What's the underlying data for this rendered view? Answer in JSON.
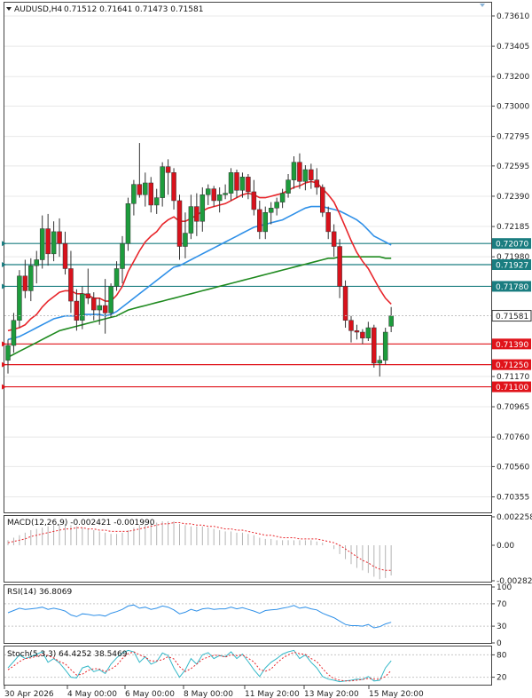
{
  "header": {
    "symbol": "AUDUSD,H4",
    "ohlc": "0.71512 0.71641 0.71473 0.71581"
  },
  "price_axis": [
    "0.73610",
    "0.73405",
    "0.73200",
    "0.73000",
    "0.72795",
    "0.72595",
    "0.72390",
    "0.72185",
    "0.71980",
    "0.71170",
    "0.70965",
    "0.70760",
    "0.70560",
    "0.70355"
  ],
  "level_tags": [
    {
      "value": "0.72070",
      "color": "#1a7d80"
    },
    {
      "value": "0.71927",
      "color": "#1a7d80"
    },
    {
      "value": "0.71780",
      "color": "#1a7d80"
    },
    {
      "value": "0.71390",
      "color": "#e0131a"
    },
    {
      "value": "0.71250",
      "color": "#e0131a"
    },
    {
      "value": "0.71100",
      "color": "#e0131a"
    }
  ],
  "current_price": "0.71581",
  "time_axis": [
    "30 Apr 2026",
    "4 May 00:00",
    "6 May 00:00",
    "8 May 00:00",
    "11 May 20:00",
    "13 May 20:00",
    "15 May 20:00"
  ],
  "indicators": {
    "macd": {
      "label": "MACD(12,26,9) -0.002421 -0.001990",
      "ticks": [
        "0.002258",
        "0.00",
        "-0.002823"
      ]
    },
    "rsi": {
      "label": "RSI(14) 36.8069",
      "ticks": [
        "100",
        "70",
        "30",
        "0"
      ]
    },
    "stoch": {
      "label": "Stoch(5,3,3) 64.4252 38.5469",
      "ticks": [
        "80",
        "20"
      ]
    }
  },
  "colors": {
    "bull": "#1d9c3c",
    "bear": "#d8121c",
    "ema_fast": "#e8262b",
    "ema_mid": "#2f90e8",
    "ema_slow": "#1f8a1f",
    "support_line": "#1a7d80",
    "resistance_line": "#e0131a"
  },
  "chart_data": {
    "type": "candlestick",
    "ylim": [
      0.7025,
      0.737
    ],
    "candles": [
      [
        0.7128,
        0.7142,
        0.7119,
        0.7138
      ],
      [
        0.7138,
        0.716,
        0.7133,
        0.7155
      ],
      [
        0.7155,
        0.7189,
        0.715,
        0.7185
      ],
      [
        0.7185,
        0.7196,
        0.717,
        0.7175
      ],
      [
        0.7175,
        0.7197,
        0.7168,
        0.7192
      ],
      [
        0.7192,
        0.7202,
        0.718,
        0.7196
      ],
      [
        0.7196,
        0.7226,
        0.719,
        0.7217
      ],
      [
        0.7217,
        0.7227,
        0.7192,
        0.72
      ],
      [
        0.72,
        0.7222,
        0.7195,
        0.7215
      ],
      [
        0.7215,
        0.7224,
        0.7198,
        0.7207
      ],
      [
        0.7207,
        0.7215,
        0.7186,
        0.719
      ],
      [
        0.719,
        0.7202,
        0.716,
        0.7168
      ],
      [
        0.7168,
        0.7176,
        0.7148,
        0.7155
      ],
      [
        0.7155,
        0.7178,
        0.7149,
        0.7173
      ],
      [
        0.7173,
        0.719,
        0.7166,
        0.717
      ],
      [
        0.717,
        0.7174,
        0.7155,
        0.7162
      ],
      [
        0.7162,
        0.717,
        0.7152,
        0.7165
      ],
      [
        0.7165,
        0.7183,
        0.7146,
        0.716
      ],
      [
        0.716,
        0.718,
        0.7157,
        0.7178
      ],
      [
        0.7178,
        0.7195,
        0.7175,
        0.719
      ],
      [
        0.719,
        0.7212,
        0.718,
        0.7207
      ],
      [
        0.7207,
        0.7238,
        0.7202,
        0.7234
      ],
      [
        0.7234,
        0.725,
        0.7226,
        0.7247
      ],
      [
        0.7247,
        0.7275,
        0.7238,
        0.724
      ],
      [
        0.724,
        0.7255,
        0.7232,
        0.7248
      ],
      [
        0.7248,
        0.7252,
        0.7228,
        0.7233
      ],
      [
        0.7233,
        0.7244,
        0.7227,
        0.7238
      ],
      [
        0.7238,
        0.7262,
        0.7232,
        0.7259
      ],
      [
        0.7259,
        0.7264,
        0.724,
        0.7255
      ],
      [
        0.7255,
        0.7258,
        0.723,
        0.7236
      ],
      [
        0.7236,
        0.724,
        0.7196,
        0.7205
      ],
      [
        0.7205,
        0.7228,
        0.7197,
        0.7214
      ],
      [
        0.7214,
        0.724,
        0.721,
        0.7232
      ],
      [
        0.7232,
        0.7241,
        0.7212,
        0.7222
      ],
      [
        0.7222,
        0.7245,
        0.7215,
        0.724
      ],
      [
        0.724,
        0.7247,
        0.7233,
        0.7244
      ],
      [
        0.7244,
        0.7246,
        0.7232,
        0.7236
      ],
      [
        0.7236,
        0.7245,
        0.7228,
        0.724
      ],
      [
        0.724,
        0.7247,
        0.7237,
        0.7241
      ],
      [
        0.7241,
        0.7258,
        0.7236,
        0.7255
      ],
      [
        0.7255,
        0.7257,
        0.7238,
        0.7243
      ],
      [
        0.7243,
        0.7255,
        0.7238,
        0.7252
      ],
      [
        0.7252,
        0.7254,
        0.7237,
        0.7242
      ],
      [
        0.7242,
        0.725,
        0.7226,
        0.723
      ],
      [
        0.723,
        0.7236,
        0.721,
        0.7215
      ],
      [
        0.7215,
        0.7232,
        0.721,
        0.7228
      ],
      [
        0.7228,
        0.7235,
        0.722,
        0.7231
      ],
      [
        0.7231,
        0.7238,
        0.7226,
        0.7235
      ],
      [
        0.7235,
        0.7244,
        0.7231,
        0.7241
      ],
      [
        0.7241,
        0.7254,
        0.7238,
        0.725
      ],
      [
        0.725,
        0.7266,
        0.7244,
        0.7262
      ],
      [
        0.7262,
        0.7268,
        0.7244,
        0.7249
      ],
      [
        0.7249,
        0.726,
        0.7243,
        0.7257
      ],
      [
        0.7257,
        0.7261,
        0.7244,
        0.725
      ],
      [
        0.725,
        0.7258,
        0.724,
        0.7245
      ],
      [
        0.7245,
        0.7247,
        0.7225,
        0.7228
      ],
      [
        0.7228,
        0.7232,
        0.721,
        0.7215
      ],
      [
        0.7215,
        0.722,
        0.7198,
        0.7205
      ],
      [
        0.7205,
        0.721,
        0.717,
        0.7178
      ],
      [
        0.7178,
        0.7182,
        0.715,
        0.7155
      ],
      [
        0.7155,
        0.7158,
        0.714,
        0.7148
      ],
      [
        0.7148,
        0.7152,
        0.7142,
        0.7147
      ],
      [
        0.7147,
        0.7149,
        0.7139,
        0.7143
      ],
      [
        0.7143,
        0.7154,
        0.7141,
        0.715
      ],
      [
        0.715,
        0.7152,
        0.7123,
        0.7126
      ],
      [
        0.7126,
        0.7131,
        0.7117,
        0.7128
      ],
      [
        0.7128,
        0.715,
        0.7125,
        0.7147
      ],
      [
        0.7151,
        0.7164,
        0.7147,
        0.7158
      ]
    ],
    "ema_fast": [
      0.7148,
      0.7149,
      0.715,
      0.7152,
      0.7156,
      0.7159,
      0.7164,
      0.7168,
      0.7171,
      0.7174,
      0.7175,
      0.7175,
      0.7173,
      0.7173,
      0.7172,
      0.717,
      0.717,
      0.7168,
      0.7168,
      0.7172,
      0.7178,
      0.7188,
      0.7195,
      0.7202,
      0.7208,
      0.7212,
      0.7215,
      0.722,
      0.7223,
      0.7225,
      0.7222,
      0.7222,
      0.7224,
      0.7226,
      0.7229,
      0.7231,
      0.7232,
      0.7233,
      0.7234,
      0.7236,
      0.7238,
      0.724,
      0.7241,
      0.724,
      0.7238,
      0.7238,
      0.7239,
      0.724,
      0.7241,
      0.7243,
      0.7245,
      0.7246,
      0.7248,
      0.7249,
      0.7248,
      0.7244,
      0.724,
      0.7235,
      0.7227,
      0.7218,
      0.7209,
      0.7201,
      0.7195,
      0.719,
      0.7183,
      0.7176,
      0.717,
      0.7166
    ],
    "ema_mid": [
      0.7142,
      0.7143,
      0.7144,
      0.7146,
      0.7148,
      0.715,
      0.7152,
      0.7154,
      0.7156,
      0.7157,
      0.7158,
      0.7158,
      0.7158,
      0.7159,
      0.7159,
      0.7159,
      0.7159,
      0.7158,
      0.7159,
      0.7161,
      0.7164,
      0.7167,
      0.717,
      0.7173,
      0.7176,
      0.7179,
      0.7182,
      0.7185,
      0.7188,
      0.7191,
      0.7192,
      0.7194,
      0.7196,
      0.7198,
      0.72,
      0.7202,
      0.7204,
      0.7206,
      0.7208,
      0.721,
      0.7212,
      0.7214,
      0.7216,
      0.7218,
      0.7219,
      0.722,
      0.7221,
      0.7222,
      0.7223,
      0.7225,
      0.7227,
      0.7229,
      0.7231,
      0.7232,
      0.7232,
      0.7232,
      0.7231,
      0.723,
      0.7229,
      0.7227,
      0.7225,
      0.7223,
      0.722,
      0.7216,
      0.7212,
      0.721,
      0.7208,
      0.7206
    ],
    "ema_slow": [
      0.713,
      0.7132,
      0.7134,
      0.7136,
      0.7138,
      0.714,
      0.7142,
      0.7144,
      0.7146,
      0.7148,
      0.7149,
      0.715,
      0.7151,
      0.7152,
      0.7153,
      0.7154,
      0.7155,
      0.7156,
      0.7157,
      0.7158,
      0.716,
      0.7162,
      0.7163,
      0.7164,
      0.7165,
      0.7166,
      0.7167,
      0.7168,
      0.7169,
      0.717,
      0.7171,
      0.7172,
      0.7173,
      0.7174,
      0.7175,
      0.7176,
      0.7177,
      0.7178,
      0.7179,
      0.718,
      0.7181,
      0.7182,
      0.7183,
      0.7184,
      0.7185,
      0.7186,
      0.7187,
      0.7188,
      0.7189,
      0.719,
      0.7191,
      0.7192,
      0.7193,
      0.7194,
      0.7195,
      0.7196,
      0.7197,
      0.7197,
      0.7198,
      0.7198,
      0.7198,
      0.7198,
      0.7198,
      0.7198,
      0.7198,
      0.7198,
      0.7197,
      0.7197
    ],
    "levels": [
      {
        "value": 0.7207,
        "color": "#1a7d80"
      },
      {
        "value": 0.71927,
        "color": "#1a7d80"
      },
      {
        "value": 0.7178,
        "color": "#1a7d80"
      },
      {
        "value": 0.7139,
        "color": "#e0131a"
      },
      {
        "value": 0.7125,
        "color": "#e0131a"
      },
      {
        "value": 0.711,
        "color": "#e0131a"
      }
    ],
    "macd_hist": [
      0.0004,
      0.0006,
      0.0008,
      0.001,
      0.0012,
      0.0013,
      0.0014,
      0.0015,
      0.0016,
      0.0017,
      0.0017,
      0.0016,
      0.0015,
      0.0014,
      0.0013,
      0.0012,
      0.0011,
      0.001,
      0.0009,
      0.0009,
      0.001,
      0.0012,
      0.0014,
      0.0016,
      0.0017,
      0.0018,
      0.0018,
      0.0019,
      0.0019,
      0.0019,
      0.0017,
      0.0016,
      0.0015,
      0.0015,
      0.0015,
      0.0014,
      0.0013,
      0.0012,
      0.0011,
      0.0011,
      0.001,
      0.001,
      0.0009,
      0.0008,
      0.0006,
      0.0005,
      0.0005,
      0.0004,
      0.0004,
      0.0004,
      0.0004,
      0.0004,
      0.0004,
      0.0004,
      0.0003,
      0.0002,
      0.0,
      -0.0003,
      -0.0007,
      -0.0011,
      -0.0015,
      -0.0018,
      -0.002,
      -0.0022,
      -0.0025,
      -0.0027,
      -0.0026,
      -0.0024
    ],
    "macd_signal": [
      0.0002,
      0.0003,
      0.0004,
      0.0005,
      0.0007,
      0.0008,
      0.0009,
      0.001,
      0.0011,
      0.0012,
      0.0013,
      0.0013,
      0.0014,
      0.0014,
      0.0013,
      0.0013,
      0.0012,
      0.0012,
      0.0011,
      0.0011,
      0.0011,
      0.0011,
      0.0012,
      0.0013,
      0.0014,
      0.0015,
      0.0016,
      0.0017,
      0.0017,
      0.0018,
      0.0018,
      0.0017,
      0.0017,
      0.0016,
      0.0016,
      0.0015,
      0.0015,
      0.0014,
      0.0013,
      0.0013,
      0.0012,
      0.0012,
      0.0011,
      0.001,
      0.0009,
      0.0008,
      0.0008,
      0.0007,
      0.0006,
      0.0006,
      0.0006,
      0.0005,
      0.0005,
      0.0005,
      0.0005,
      0.0004,
      0.0003,
      0.0002,
      0.0,
      -0.0003,
      -0.0006,
      -0.0009,
      -0.0012,
      -0.0014,
      -0.0017,
      -0.0019,
      -0.002,
      -0.002
    ],
    "rsi": [
      54,
      58,
      62,
      60,
      61,
      62,
      64,
      60,
      62,
      60,
      57,
      50,
      47,
      52,
      51,
      49,
      50,
      48,
      53,
      56,
      60,
      66,
      68,
      62,
      64,
      60,
      62,
      66,
      64,
      59,
      52,
      55,
      60,
      57,
      61,
      62,
      60,
      61,
      61,
      64,
      61,
      63,
      60,
      57,
      53,
      58,
      59,
      60,
      62,
      64,
      67,
      62,
      64,
      61,
      59,
      53,
      49,
      45,
      39,
      33,
      31,
      31,
      30,
      33,
      27,
      29,
      34,
      37
    ],
    "stoch_k": [
      45,
      62,
      80,
      70,
      75,
      82,
      88,
      60,
      70,
      58,
      40,
      20,
      18,
      45,
      50,
      35,
      40,
      30,
      55,
      72,
      85,
      92,
      88,
      60,
      75,
      55,
      62,
      85,
      78,
      45,
      20,
      40,
      70,
      55,
      80,
      86,
      70,
      78,
      75,
      88,
      70,
      82,
      62,
      40,
      22,
      45,
      60,
      70,
      82,
      88,
      92,
      70,
      80,
      60,
      45,
      22,
      15,
      12,
      8,
      10,
      12,
      15,
      14,
      22,
      10,
      12,
      45,
      64
    ],
    "stoch_d": [
      40,
      50,
      62,
      70,
      72,
      76,
      82,
      78,
      72,
      62,
      56,
      40,
      26,
      28,
      38,
      43,
      42,
      35,
      42,
      52,
      70,
      83,
      88,
      80,
      74,
      63,
      64,
      67,
      75,
      69,
      48,
      35,
      43,
      55,
      68,
      74,
      79,
      78,
      74,
      80,
      78,
      80,
      71,
      61,
      41,
      36,
      42,
      58,
      71,
      80,
      87,
      83,
      81,
      70,
      62,
      43,
      27,
      16,
      12,
      10,
      10,
      12,
      14,
      17,
      15,
      15,
      22,
      38
    ]
  }
}
